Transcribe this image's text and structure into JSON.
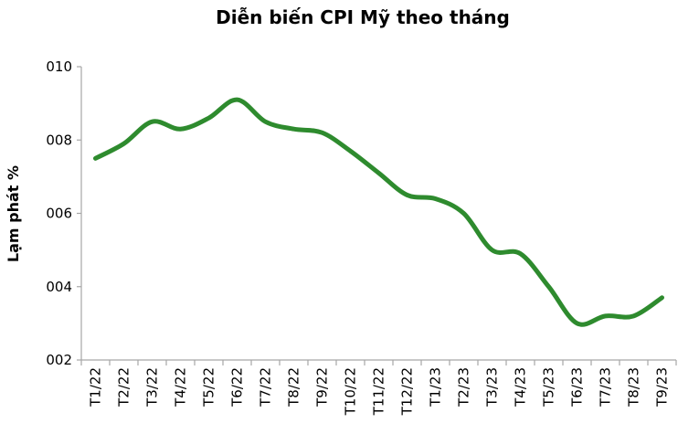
{
  "chart_data": {
    "type": "line",
    "title": "Diễn biến CPI Mỹ theo tháng",
    "y_label": "Lạm phát %",
    "categories": [
      "T1/22",
      "T2/22",
      "T3/22",
      "T4/22",
      "T5/22",
      "T6/22",
      "T7/22",
      "T8/22",
      "T9/22",
      "T10/22",
      "T11/22",
      "T12/22",
      "T1/23",
      "T2/23",
      "T3/23",
      "T4/23",
      "T5/23",
      "T6/23",
      "T7/23",
      "T8/23",
      "T9/23"
    ],
    "series": [
      {
        "name": "CPI",
        "color": "#2e8b2e",
        "values": [
          7.5,
          7.9,
          8.5,
          8.3,
          8.6,
          9.1,
          8.5,
          8.3,
          8.2,
          7.7,
          7.1,
          6.5,
          6.4,
          6.0,
          5.0,
          4.9,
          4.0,
          3.0,
          3.2,
          3.2,
          3.7
        ]
      }
    ],
    "ylim": [
      2,
      10
    ],
    "yticks": [
      {
        "value": 2,
        "label": "002"
      },
      {
        "value": 4,
        "label": "004"
      },
      {
        "value": 6,
        "label": "006"
      },
      {
        "value": 8,
        "label": "008"
      },
      {
        "value": 10,
        "label": "010"
      }
    ]
  }
}
